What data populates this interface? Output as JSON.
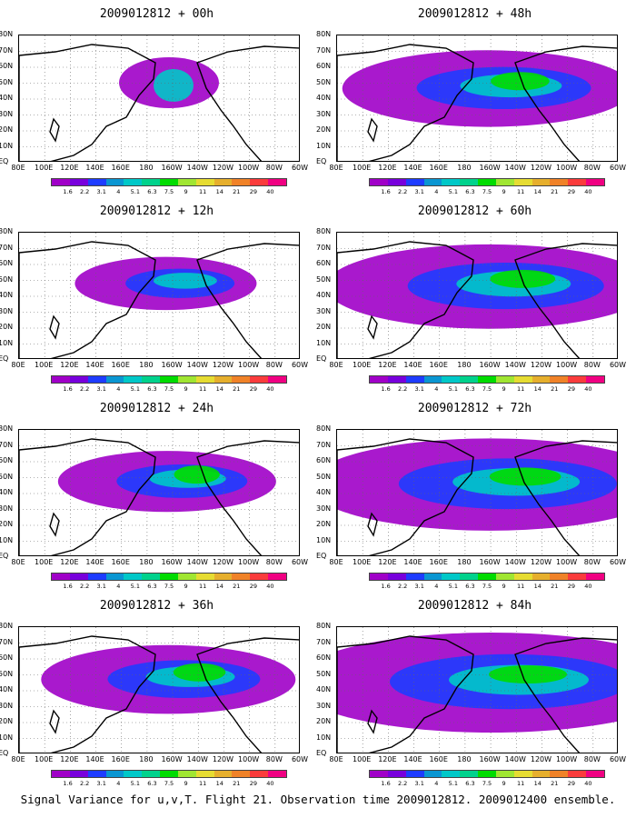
{
  "panels": [
    {
      "title": "2009012812 + 00h",
      "lead": 0
    },
    {
      "title": "2009012812 + 48h",
      "lead": 48
    },
    {
      "title": "2009012812 + 12h",
      "lead": 12
    },
    {
      "title": "2009012812 + 60h",
      "lead": 60
    },
    {
      "title": "2009012812 + 24h",
      "lead": 24
    },
    {
      "title": "2009012812 + 72h",
      "lead": 72
    },
    {
      "title": "2009012812 + 36h",
      "lead": 36
    },
    {
      "title": "2009012812 + 84h",
      "lead": 84
    }
  ],
  "axes": {
    "x_ticks": [
      "80E",
      "100E",
      "120E",
      "140E",
      "160E",
      "180",
      "160W",
      "140W",
      "120W",
      "100W",
      "80W",
      "60W"
    ],
    "y_ticks": [
      "80N",
      "70N",
      "60N",
      "50N",
      "40N",
      "30N",
      "20N",
      "10N",
      "EQ"
    ]
  },
  "colorbar": {
    "labels": [
      "1.6",
      "2.2",
      "3.1",
      "4",
      "5.1",
      "6.3",
      "7.5",
      "9",
      "11",
      "14",
      "21",
      "29",
      "40"
    ],
    "colors": [
      "#a000c8",
      "#7800dc",
      "#1e3cff",
      "#0a96d2",
      "#00c8c8",
      "#00d28c",
      "#00dc00",
      "#a0e632",
      "#e6dc32",
      "#e6af2d",
      "#f08228",
      "#fa3c3c",
      "#f00082"
    ]
  },
  "caption": "Signal Variance for u,v,T. Flight 21. Observation time 2009012812. 2009012400 ensemble."
}
